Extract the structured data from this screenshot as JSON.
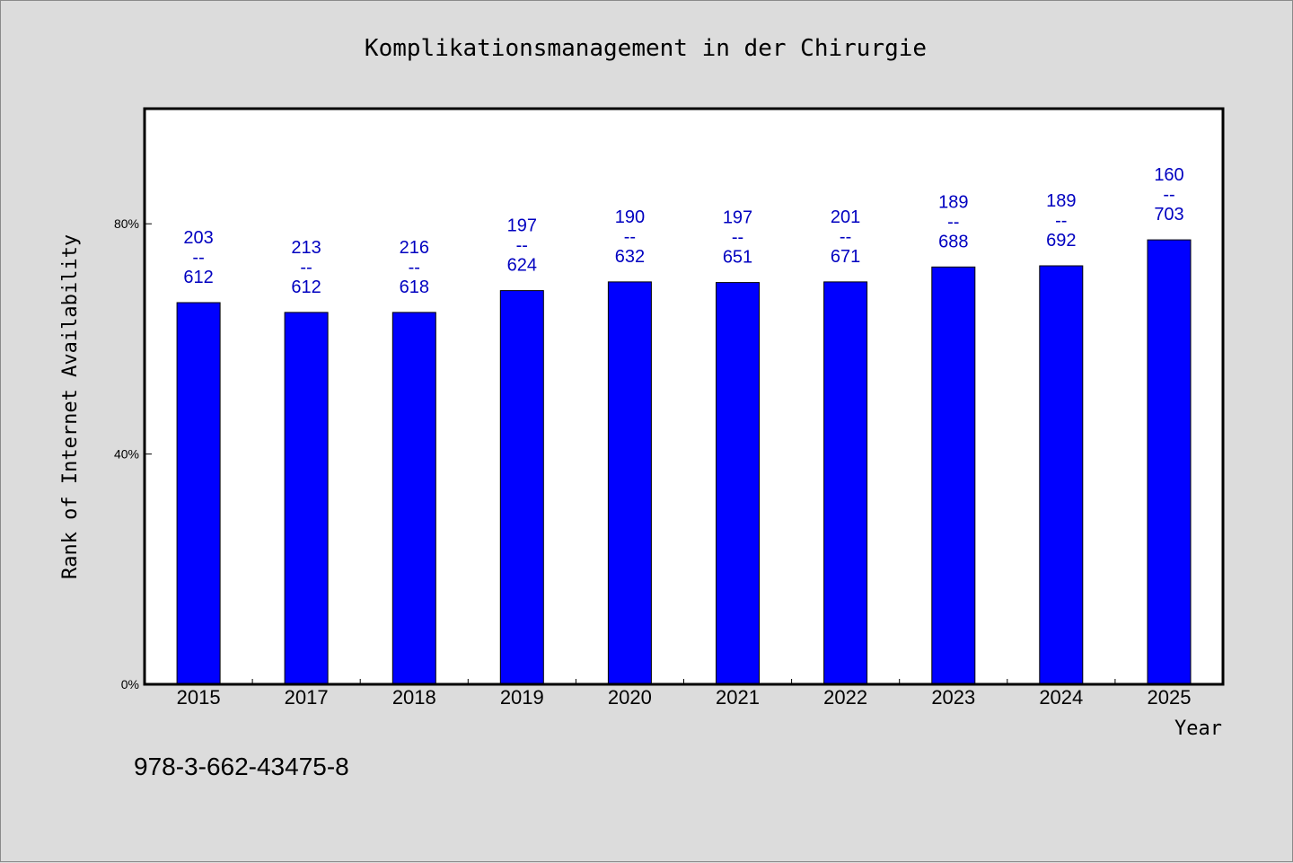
{
  "chart_data": {
    "type": "bar",
    "title": "Komplikationsmanagement in der Chirurgie",
    "xlabel": "Year",
    "ylabel": "Rank of Internet Availability",
    "categories": [
      "2015",
      "2017",
      "2018",
      "2019",
      "2020",
      "2021",
      "2022",
      "2023",
      "2024",
      "2025"
    ],
    "values": [
      66.3,
      64.6,
      64.6,
      68.4,
      69.9,
      69.8,
      69.9,
      72.5,
      72.7,
      77.2
    ],
    "bar_labels": [
      [
        "203",
        "--",
        "612"
      ],
      [
        "213",
        "--",
        "612"
      ],
      [
        "216",
        "--",
        "618"
      ],
      [
        "197",
        "--",
        "624"
      ],
      [
        "190",
        "--",
        "632"
      ],
      [
        "197",
        "--",
        "651"
      ],
      [
        "201",
        "--",
        "671"
      ],
      [
        "189",
        "--",
        "688"
      ],
      [
        "189",
        "--",
        "692"
      ],
      [
        "160",
        "--",
        "703"
      ]
    ],
    "yticks": [
      0,
      40,
      80
    ],
    "ytick_labels": [
      "0%",
      "40%",
      "80%"
    ],
    "ylim": [
      0,
      100
    ],
    "grid": false,
    "legend": "none",
    "colors": {
      "bar": "#0000ff",
      "bar_label": "#0000c0",
      "plot_background": "#ffffff",
      "figure_background": "#dcdcdc"
    }
  },
  "footer": {
    "isbn": "978-3-662-43475-8"
  }
}
